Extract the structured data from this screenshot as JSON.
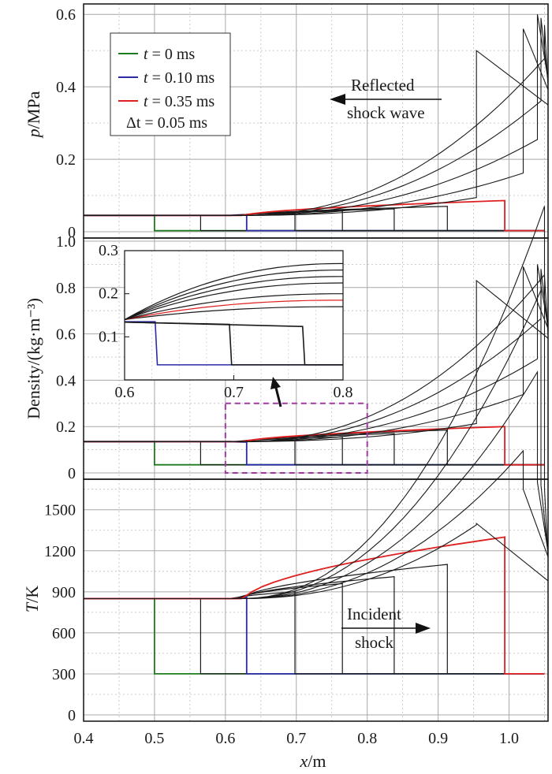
{
  "chart_data": {
    "type": "line",
    "x_axis": {
      "label_var": "x",
      "label_unit": "/m",
      "range": [
        0.4,
        1.055
      ],
      "ticks": [
        0.4,
        0.5,
        0.6,
        0.7,
        0.8,
        0.9,
        1.0
      ],
      "tick_labels": [
        "0.4",
        "0.5",
        "0.6",
        "0.7",
        "0.8",
        "0.9",
        "1.0"
      ]
    },
    "grid": true,
    "legend": {
      "placement": "top-left of top panel",
      "entries": [
        {
          "prefix": "t",
          "text": " = 0 ms",
          "color": "#1e7b1e"
        },
        {
          "prefix": "t",
          "text": " = 0.10 ms",
          "color": "#2b2ba8"
        },
        {
          "prefix": "t",
          "text": " = 0.35 ms",
          "color": "#e02020"
        }
      ],
      "note": "Δt = 0.05 ms"
    },
    "series_times_ms": [
      "0",
      "0.05",
      "0.10",
      "0.15",
      "0.20",
      "0.25",
      "0.30",
      "0.35",
      "0.40",
      "0.45",
      "0.50",
      "0.55",
      "0.60"
    ],
    "series_colors": {
      "default": "#1a1a1a",
      "t0": "#1e7b1e",
      "t010": "#2b2ba8",
      "t035": "#e02020"
    },
    "incident_shock_positions_m": [
      0.5,
      0.565,
      0.63,
      0.698,
      0.765,
      0.838,
      0.913,
      0.994
    ],
    "reflected_shock_positions_m": [
      0.954,
      1.02,
      1.04,
      1.045,
      1.05
    ],
    "panels": [
      {
        "name": "pressure",
        "ylabel_var": "p",
        "ylabel_unit": "/MPa",
        "ylim": [
          0,
          0.62
        ],
        "yticks": [
          0,
          0.2,
          0.4,
          0.6
        ],
        "ytick_labels": [
          "0",
          "0.2",
          "0.4",
          "0.6"
        ],
        "upstream_value": 0.045,
        "pre_shock_value": 0.003,
        "curve_end_values_at_front": [
          0.045,
          0.047,
          0.047,
          0.052,
          0.057,
          0.063,
          0.07,
          0.086
        ],
        "reflected_peak_values": [
          0.5,
          0.56,
          0.6,
          0.59,
          0.57
        ],
        "annotation": [
          "Reflected",
          "shock wave"
        ]
      },
      {
        "name": "density",
        "ylabel": "Density/(kg·m⁻³)",
        "ylim": [
          0,
          1.0
        ],
        "yticks": [
          0,
          0.2,
          0.4,
          0.6,
          0.8,
          1.0
        ],
        "ytick_labels": [
          "0",
          "0.2",
          "0.4",
          "0.6",
          "0.8",
          "1.0"
        ],
        "upstream_value": 0.135,
        "pre_shock_value": 0.035,
        "curve_end_values_at_front": [
          0.135,
          0.133,
          0.133,
          0.14,
          0.155,
          0.17,
          0.185,
          0.2
        ],
        "reflected_peak_values": [
          0.83,
          0.89,
          0.9,
          0.88,
          0.85
        ],
        "inset": {
          "x_range": [
            0.6,
            0.8
          ],
          "y_range": [
            0,
            0.3
          ],
          "x_ticks": [
            0.6,
            0.7,
            0.8
          ],
          "x_tick_labels": [
            "0.6",
            "0.7",
            "0.8"
          ],
          "y_ticks": [
            0.1,
            0.2,
            0.3
          ],
          "y_tick_labels": [
            "0.1",
            "0.2",
            "0.3"
          ],
          "box_x": [
            0.6,
            0.8
          ],
          "box_y": [
            0,
            0.3
          ]
        }
      },
      {
        "name": "temperature",
        "ylabel_var": "T",
        "ylabel_unit": "/K",
        "ylim": [
          0,
          1700
        ],
        "yticks": [
          0,
          300,
          600,
          900,
          1200,
          1500
        ],
        "ytick_labels": [
          "0",
          "300",
          "600",
          "900",
          "1200",
          "1500"
        ],
        "upstream_value": 850,
        "pre_shock_value": 300,
        "curve_end_values_at_front": [
          850,
          860,
          860,
          900,
          960,
          1010,
          1100,
          1300
        ],
        "reflected_peak_values": [
          1400,
          1650,
          1700,
          1680,
          1650
        ],
        "annotation": [
          "Incident",
          "shock"
        ]
      }
    ]
  }
}
